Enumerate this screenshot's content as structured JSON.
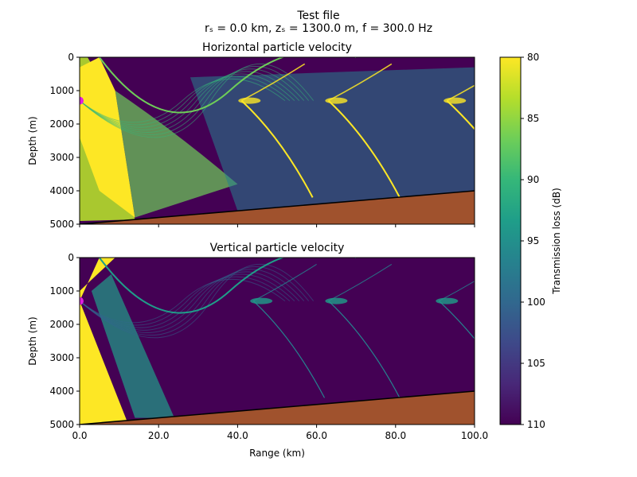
{
  "figure": {
    "title": "Test file",
    "subtitle": "rₛ = 0.0 km, zₛ = 1300.0 m, f = 300.0 Hz"
  },
  "colorbar": {
    "label": "Transmission loss (dB)",
    "range": [
      80,
      110
    ],
    "ticks": [
      "80",
      "85",
      "90",
      "95",
      "100",
      "105",
      "110"
    ],
    "colormap": "viridis",
    "colors": [
      "#fde725",
      "#b5de2b",
      "#6ece58",
      "#35b779",
      "#1f9e89",
      "#26828e",
      "#31688e",
      "#3e4989",
      "#482878",
      "#440154"
    ]
  },
  "colors": {
    "seabed": "#a0522d",
    "bathymetry_line": "#000000",
    "source_marker": "#e020e0"
  },
  "chart_data": [
    {
      "type": "heatmap",
      "title": "Horizontal particle velocity",
      "xlabel": "",
      "ylabel": "Depth (m)",
      "xlim": [
        0,
        100
      ],
      "ylim": [
        5000,
        0
      ],
      "xticks": [
        "",
        "",
        "",
        "",
        "",
        ""
      ],
      "yticks": [
        "0",
        "1000",
        "2000",
        "3000",
        "4000",
        "5000"
      ],
      "source": {
        "range_km": 0.0,
        "depth_m": 1300
      },
      "bathymetry": {
        "range_km": [
          0,
          100
        ],
        "depth_m": [
          5000,
          4000
        ]
      },
      "convergence_zones_km": [
        45,
        67,
        97
      ]
    },
    {
      "type": "heatmap",
      "title": "Vertical particle velocity",
      "xlabel": "Range (km)",
      "ylabel": "Depth (m)",
      "xlim": [
        0,
        100
      ],
      "ylim": [
        5000,
        0
      ],
      "xticks": [
        "0.0",
        "20.0",
        "40.0",
        "60.0",
        "80.0",
        "100.0"
      ],
      "yticks": [
        "0",
        "1000",
        "2000",
        "3000",
        "4000",
        "5000"
      ],
      "source": {
        "range_km": 0.0,
        "depth_m": 1300
      },
      "bathymetry": {
        "range_km": [
          0,
          100
        ],
        "depth_m": [
          5000,
          4000
        ]
      },
      "convergence_zones_km": [
        48,
        67,
        95
      ]
    }
  ]
}
